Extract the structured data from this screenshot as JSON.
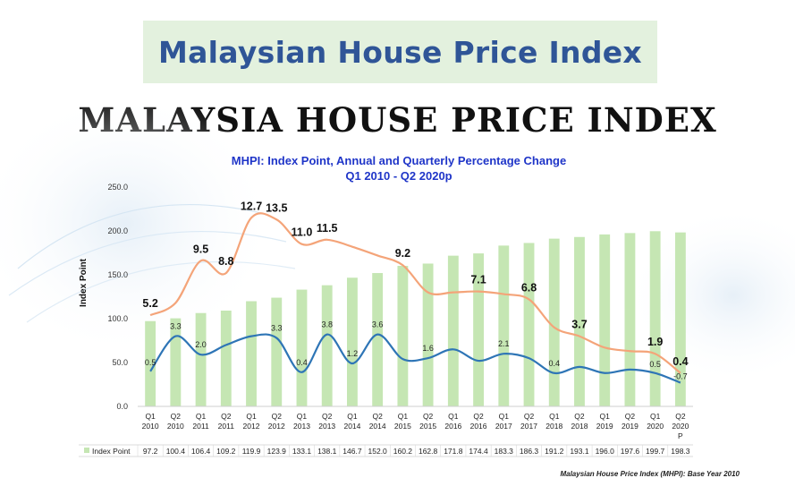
{
  "header": {
    "title": "Malaysian House Price Index"
  },
  "slide": {
    "title": "MALAYSIA HOUSE PRICE INDEX"
  },
  "footer": {
    "note": "Malaysian House Price Index (MHPI): Base Year 2010"
  },
  "colors": {
    "bars": "#c5e6b3",
    "annual_line": "#f4a479",
    "quarterly_line": "#2e75b6",
    "subtitle": "#1f35c8",
    "header_bg": "#e3f1de",
    "header_text": "#2f5597"
  },
  "chart_data": {
    "type": "bar",
    "title": "MHPI: Index Point, Annual and Quarterly Percentage Change",
    "subtitle": "Q1 2010 - Q2 2020p",
    "ylabel": "Index Point",
    "ylim": [
      0,
      250
    ],
    "yticks": [
      "0.0",
      "50.0",
      "100.0",
      "150.0",
      "200.0",
      "250.0"
    ],
    "categories": [
      [
        "Q1",
        "2010"
      ],
      [
        "Q2",
        "2010"
      ],
      [
        "Q1",
        "2011"
      ],
      [
        "Q2",
        "2011"
      ],
      [
        "Q1",
        "2012"
      ],
      [
        "Q2",
        "2012"
      ],
      [
        "Q1",
        "2013"
      ],
      [
        "Q2",
        "2013"
      ],
      [
        "Q1",
        "2014"
      ],
      [
        "Q2",
        "2014"
      ],
      [
        "Q1",
        "2015"
      ],
      [
        "Q2",
        "2015"
      ],
      [
        "Q1",
        "2016"
      ],
      [
        "Q2",
        "2016"
      ],
      [
        "Q1",
        "2017"
      ],
      [
        "Q2",
        "2017"
      ],
      [
        "Q1",
        "2018"
      ],
      [
        "Q2",
        "2018"
      ],
      [
        "Q1",
        "2019"
      ],
      [
        "Q2",
        "2019"
      ],
      [
        "Q1",
        "2020"
      ],
      [
        "Q2",
        "2020",
        "P"
      ]
    ],
    "series": [
      {
        "name": "Index Point",
        "values": [
          97.2,
          100.4,
          106.4,
          109.2,
          119.9,
          123.9,
          133.1,
          138.1,
          146.7,
          152.0,
          160.2,
          162.8,
          171.8,
          174.4,
          183.3,
          186.3,
          191.2,
          193.1,
          196.0,
          197.6,
          199.7,
          198.3
        ],
        "labels": [
          "97.2",
          "100.4",
          "106.4",
          "109.2",
          "119.9",
          "123.9",
          "133.1",
          "138.1",
          "146.7",
          "152.0",
          "160.2",
          "162.8",
          "171.8",
          "174.4",
          "183.3",
          "186.3",
          "191.2",
          "193.1",
          "196.0",
          "197.6",
          "199.7",
          "198.3"
        ]
      },
      {
        "values": [
          104,
          118,
          166,
          152,
          215,
          213,
          185,
          190,
          182,
          172,
          161,
          130,
          130,
          131,
          128,
          122,
          90,
          80,
          67,
          63,
          60,
          38
        ],
        "annotations": [
          {
            "index": 0,
            "label": "5.2"
          },
          {
            "index": 2,
            "label": "9.5"
          },
          {
            "index": 3,
            "label": "8.8"
          },
          {
            "index": 4,
            "label": "12.7"
          },
          {
            "index": 5,
            "label": "13.5"
          },
          {
            "index": 6,
            "label": "11.0"
          },
          {
            "index": 7,
            "label": "11.5"
          },
          {
            "index": 10,
            "label": "9.2"
          },
          {
            "index": 13,
            "label": "7.1"
          },
          {
            "index": 15,
            "label": "6.8"
          },
          {
            "index": 17,
            "label": "3.7"
          },
          {
            "index": 20,
            "label": "1.9"
          },
          {
            "index": 21,
            "label": "0.4"
          }
        ]
      },
      {
        "values": [
          40,
          80,
          59,
          70,
          80,
          78,
          39,
          82,
          49,
          82,
          54,
          55,
          65,
          52,
          60,
          55,
          38,
          45,
          38,
          42,
          38,
          27
        ],
        "annotations": [
          {
            "index": 0,
            "label": "0.5"
          },
          {
            "index": 1,
            "label": "3.3"
          },
          {
            "index": 2,
            "label": "2.0"
          },
          {
            "index": 5,
            "label": "3.3"
          },
          {
            "index": 6,
            "label": "0.4"
          },
          {
            "index": 7,
            "label": "3.8"
          },
          {
            "index": 8,
            "label": "1.2"
          },
          {
            "index": 9,
            "label": "3.6"
          },
          {
            "index": 11,
            "label": "1.6"
          },
          {
            "index": 14,
            "label": "2.1"
          },
          {
            "index": 16,
            "label": "0.4"
          },
          {
            "index": 20,
            "label": "0.5"
          },
          {
            "index": 21,
            "label": "-0.7"
          }
        ]
      }
    ]
  }
}
